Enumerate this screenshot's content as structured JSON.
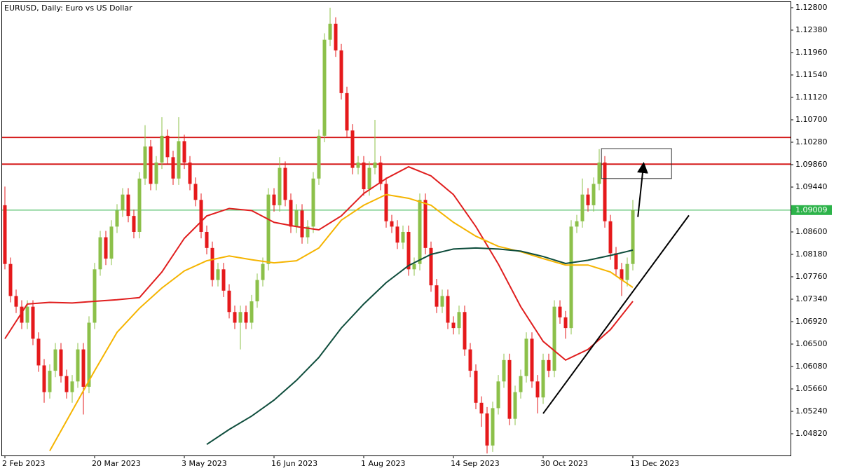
{
  "chart_data": {
    "type": "candlestick",
    "title": "EURUSD, Daily:  Euro vs US Dollar",
    "colors": {
      "up": "#8cc04a",
      "down": "#e5191b"
    },
    "open": [
      1.091,
      1.08,
      1.074,
      1.072,
      1.069,
      1.072,
      1.066,
      1.061,
      1.056,
      1.06,
      1.064,
      1.059,
      1.056,
      1.058,
      1.064,
      1.057,
      1.069,
      1.079,
      1.085,
      1.081,
      1.087,
      1.09,
      1.093,
      1.089,
      1.086,
      1.096,
      1.102,
      1.095,
      1.099,
      1.104,
      1.1,
      1.096,
      1.103,
      1.099,
      1.095,
      1.092,
      1.086,
      1.083,
      1.077,
      1.079,
      1.075,
      1.071,
      1.069,
      1.071,
      1.069,
      1.073,
      1.077,
      1.08,
      1.093,
      1.091,
      1.098,
      1.092,
      1.087,
      1.09,
      1.085,
      1.087,
      1.096,
      1.104,
      1.122,
      1.125,
      1.12,
      1.112,
      1.105,
      1.098,
      1.099,
      1.094,
      1.098,
      1.099,
      1.095,
      1.088,
      1.087,
      1.084,
      1.086,
      1.079,
      1.08,
      1.092,
      1.083,
      1.076,
      1.072,
      1.074,
      1.069,
      1.068,
      1.071,
      1.064,
      1.06,
      1.054,
      1.052,
      1.046,
      1.053,
      1.058,
      1.062,
      1.051,
      1.056,
      1.059,
      1.066,
      1.058,
      1.055,
      1.062,
      1.06,
      1.072,
      1.07,
      1.068,
      1.087,
      1.088,
      1.093,
      1.091,
      1.095,
      1.099,
      1.088,
      1.082,
      1.079,
      1.077,
      1.08
    ],
    "close": [
      1.08,
      1.074,
      1.072,
      1.069,
      1.072,
      1.066,
      1.061,
      1.056,
      1.06,
      1.064,
      1.059,
      1.056,
      1.058,
      1.064,
      1.057,
      1.069,
      1.079,
      1.085,
      1.081,
      1.087,
      1.09,
      1.093,
      1.089,
      1.086,
      1.096,
      1.102,
      1.095,
      1.099,
      1.104,
      1.1,
      1.096,
      1.103,
      1.099,
      1.095,
      1.092,
      1.086,
      1.083,
      1.077,
      1.079,
      1.075,
      1.071,
      1.069,
      1.071,
      1.069,
      1.073,
      1.077,
      1.08,
      1.093,
      1.091,
      1.098,
      1.092,
      1.087,
      1.09,
      1.085,
      1.087,
      1.096,
      1.104,
      1.122,
      1.125,
      1.12,
      1.112,
      1.105,
      1.098,
      1.099,
      1.094,
      1.098,
      1.099,
      1.095,
      1.088,
      1.087,
      1.084,
      1.086,
      1.079,
      1.08,
      1.092,
      1.083,
      1.076,
      1.072,
      1.074,
      1.069,
      1.068,
      1.071,
      1.064,
      1.06,
      1.054,
      1.052,
      1.046,
      1.053,
      1.058,
      1.062,
      1.051,
      1.056,
      1.059,
      1.066,
      1.058,
      1.055,
      1.062,
      1.06,
      1.072,
      1.07,
      1.068,
      1.087,
      1.088,
      1.093,
      1.091,
      1.095,
      1.099,
      1.088,
      1.082,
      1.079,
      1.077,
      1.08,
      1.0901
    ],
    "high": [
      1.0945,
      1.0812,
      1.0752,
      1.0732,
      1.0732,
      1.0732,
      1.0672,
      1.0622,
      1.0612,
      1.0652,
      1.0652,
      1.0602,
      1.0592,
      1.0652,
      1.0652,
      1.0702,
      1.0802,
      1.0862,
      1.0862,
      1.0882,
      1.0912,
      1.0942,
      1.0942,
      1.0902,
      1.0972,
      1.106,
      1.1032,
      1.1002,
      1.1075,
      1.1052,
      1.1012,
      1.1075,
      1.1042,
      1.1002,
      1.0962,
      1.0932,
      1.0872,
      1.0842,
      1.0802,
      1.0802,
      1.0762,
      1.0722,
      1.0722,
      1.0722,
      1.0742,
      1.0782,
      1.0812,
      1.0942,
      1.0942,
      1.1,
      1.0992,
      1.0932,
      1.0912,
      1.0912,
      1.0882,
      1.0972,
      1.1052,
      1.1232,
      1.128,
      1.1262,
      1.1212,
      1.1132,
      1.1062,
      1.1002,
      1.1002,
      1.0992,
      1.107,
      1.1002,
      1.0962,
      1.0892,
      1.0882,
      1.0872,
      1.0872,
      1.0812,
      1.0932,
      1.0932,
      1.0842,
      1.0772,
      1.0752,
      1.0752,
      1.0702,
      1.0722,
      1.0722,
      1.0652,
      1.0612,
      1.0552,
      1.0532,
      1.0542,
      1.0592,
      1.0632,
      1.0632,
      1.0572,
      1.0602,
      1.0672,
      1.0672,
      1.0592,
      1.0632,
      1.0632,
      1.0732,
      1.0732,
      1.0712,
      1.0882,
      1.0892,
      1.096,
      1.0942,
      1.0962,
      1.1015,
      1.1002,
      1.0892,
      1.0832,
      1.0802,
      1.0812,
      1.092
    ],
    "low": [
      1.079,
      1.0728,
      1.0708,
      1.0678,
      1.0678,
      1.0648,
      1.0598,
      1.054,
      1.0548,
      1.0588,
      1.0578,
      1.0548,
      1.054,
      1.0568,
      1.0518,
      1.0558,
      1.0678,
      1.0778,
      1.0798,
      1.0798,
      1.0858,
      1.0888,
      1.0878,
      1.0848,
      1.0848,
      1.0948,
      1.0938,
      1.0938,
      1.0978,
      1.0988,
      1.0948,
      1.0948,
      1.0978,
      1.0938,
      1.0908,
      1.0848,
      1.0818,
      1.0758,
      1.0758,
      1.0738,
      1.0698,
      1.0678,
      1.064,
      1.0678,
      1.0678,
      1.0718,
      1.0758,
      1.0788,
      1.0898,
      1.0898,
      1.0908,
      1.0858,
      1.0858,
      1.0838,
      1.0838,
      1.0858,
      1.0948,
      1.1028,
      1.1208,
      1.1188,
      1.1108,
      1.1038,
      1.0968,
      1.0968,
      1.0928,
      1.0928,
      1.0968,
      1.0938,
      1.0868,
      1.0858,
      1.0828,
      1.0828,
      1.0778,
      1.0778,
      1.0788,
      1.0818,
      1.0748,
      1.0708,
      1.0708,
      1.0678,
      1.0668,
      1.0668,
      1.0628,
      1.0588,
      1.0528,
      1.0495,
      1.0445,
      1.0448,
      1.0518,
      1.0568,
      1.0498,
      1.0498,
      1.0548,
      1.0578,
      1.0568,
      1.052,
      1.0538,
      1.0588,
      1.0588,
      1.0688,
      1.066,
      1.0668,
      1.0858,
      1.0868,
      1.0898,
      1.0898,
      1.0938,
      1.0868,
      1.0808,
      1.0778,
      1.074,
      1.0758,
      1.0788
    ],
    "indicators": [
      {
        "color": "#e01e1e",
        "x": [
          0,
          4,
          8,
          12,
          16,
          20,
          24,
          28,
          32,
          36,
          40,
          44,
          48,
          52,
          56,
          60,
          64,
          68,
          72,
          76,
          80,
          84,
          88,
          92,
          96,
          100,
          104,
          108,
          112
        ],
        "values": [
          1.066,
          1.0725,
          1.0728,
          1.0727,
          1.073,
          1.0733,
          1.0737,
          1.0785,
          1.0848,
          1.089,
          1.0904,
          1.09,
          1.0878,
          1.087,
          1.0864,
          1.089,
          1.0932,
          1.096,
          1.0982,
          1.0965,
          1.093,
          1.087,
          1.08,
          1.072,
          1.0655,
          1.062,
          1.064,
          1.0677,
          1.073
        ]
      },
      {
        "color": "#f5b400",
        "x": [
          0,
          4,
          8,
          12,
          16,
          20,
          24,
          28,
          32,
          36,
          40,
          44,
          48,
          52,
          56,
          60,
          64,
          68,
          72,
          76,
          80,
          84,
          88,
          92,
          96,
          100,
          104,
          108,
          112
        ],
        "values": [
          null,
          null,
          1.045,
          1.0525,
          1.06,
          1.0672,
          1.0717,
          1.0755,
          1.0787,
          1.0806,
          1.0815,
          1.0808,
          1.0802,
          1.0806,
          1.083,
          1.0882,
          1.091,
          1.093,
          1.0923,
          1.091,
          1.0878,
          1.0852,
          1.0833,
          1.0823,
          1.081,
          1.0798,
          1.0798,
          1.0785,
          1.0756
        ]
      },
      {
        "color": "#0e4d3c",
        "x": [
          0,
          4,
          8,
          12,
          16,
          20,
          24,
          28,
          32,
          36,
          40,
          44,
          48,
          52,
          56,
          60,
          64,
          68,
          72,
          76,
          80,
          84,
          88,
          92,
          96,
          100,
          104,
          108,
          112
        ],
        "values": [
          null,
          null,
          null,
          null,
          null,
          null,
          null,
          null,
          null,
          1.0462,
          1.049,
          1.0515,
          1.0545,
          1.0582,
          1.0625,
          1.068,
          1.0725,
          1.0765,
          1.0797,
          1.0818,
          1.0828,
          1.083,
          1.0828,
          1.0824,
          1.0814,
          1.0801,
          1.0807,
          1.0816,
          1.0826
        ]
      }
    ],
    "levels": [
      {
        "value": 1.1037,
        "color": "#d51a1a"
      },
      {
        "value": 1.0987,
        "color": "#d51a1a"
      }
    ],
    "last_price": 1.09009,
    "last_price_color": "#2db34a",
    "box": {
      "x": [
        106.4,
        118.9
      ],
      "y": [
        1.096,
        1.1016
      ]
    },
    "arrow": {
      "x": [
        112.9,
        113.9
      ],
      "y": [
        1.0888,
        1.0986
      ]
    },
    "trendline": {
      "x": [
        96,
        122
      ],
      "y": [
        1.052,
        1.0891
      ]
    },
    "xlim": [
      -0.5,
      140.125
    ],
    "xticks": [
      {
        "value": 0,
        "label": "2 Feb 2023"
      },
      {
        "value": 16,
        "label": "20 Mar 2023"
      },
      {
        "value": 32,
        "label": "3 May 2023"
      },
      {
        "value": 48,
        "label": "16 Jun 2023"
      },
      {
        "value": 64,
        "label": "1 Aug 2023"
      },
      {
        "value": 80,
        "label": "14 Sep 2023"
      },
      {
        "value": 96,
        "label": "30 Oct 2023"
      },
      {
        "value": 112,
        "label": "13 Dec 2023"
      }
    ],
    "ylim": [
      1.04413,
      1.12944
    ],
    "yticks": [
      {
        "value": 1.128,
        "label": "1.12800"
      },
      {
        "value": 1.1238,
        "label": "1.12380"
      },
      {
        "value": 1.1196,
        "label": "1.11960"
      },
      {
        "value": 1.1154,
        "label": "1.11540"
      },
      {
        "value": 1.1112,
        "label": "1.11120"
      },
      {
        "value": 1.107,
        "label": "1.10700"
      },
      {
        "value": 1.1028,
        "label": "1.10280"
      },
      {
        "value": 1.0986,
        "label": "1.09860"
      },
      {
        "value": 1.0944,
        "label": "1.09440"
      },
      {
        "value": 1.086,
        "label": "1.08600"
      },
      {
        "value": 1.0818,
        "label": "1.08180"
      },
      {
        "value": 1.0776,
        "label": "1.07760"
      },
      {
        "value": 1.0734,
        "label": "1.07340"
      },
      {
        "value": 1.0692,
        "label": "1.06920"
      },
      {
        "value": 1.065,
        "label": "1.06500"
      },
      {
        "value": 1.0608,
        "label": "1.06080"
      },
      {
        "value": 1.0566,
        "label": "1.05660"
      },
      {
        "value": 1.0524,
        "label": "1.05240"
      },
      {
        "value": 1.0482,
        "label": "1.04820"
      }
    ]
  }
}
